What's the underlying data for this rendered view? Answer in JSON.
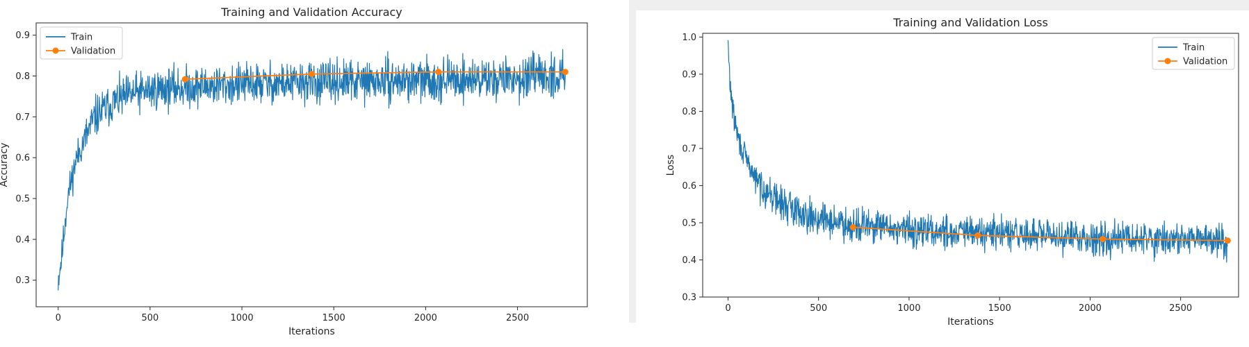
{
  "chart_data": [
    {
      "type": "line",
      "title": "Training and Validation Accuracy",
      "xlabel": "Iterations",
      "ylabel": "Accuracy",
      "xlim": [
        -120,
        2880
      ],
      "ylim": [
        0.235,
        0.93
      ],
      "xticks": [
        "0",
        "500",
        "1000",
        "1500",
        "2000",
        "2500"
      ],
      "yticks": [
        "0.3",
        "0.4",
        "0.5",
        "0.6",
        "0.7",
        "0.8",
        "0.9"
      ],
      "legend": {
        "placement": "upper-left",
        "entries": [
          "Train",
          "Validation"
        ]
      },
      "grid": false,
      "series": [
        {
          "name": "Train",
          "color": "#1f77b4",
          "marker": "none",
          "trend_x": [
            0,
            20,
            50,
            100,
            150,
            200,
            300,
            400,
            500,
            600,
            800,
            1000,
            1500,
            2000,
            2500,
            2760
          ],
          "trend_y": [
            0.3,
            0.36,
            0.5,
            0.6,
            0.65,
            0.7,
            0.735,
            0.755,
            0.765,
            0.77,
            0.775,
            0.78,
            0.785,
            0.79,
            0.795,
            0.8
          ],
          "noise_amplitude": 0.045,
          "x_max": 2760
        },
        {
          "name": "Validation",
          "color": "#ff7f0e",
          "marker": "circle",
          "x": [
            690,
            1380,
            2070,
            2760
          ],
          "y": [
            0.792,
            0.805,
            0.81,
            0.81
          ]
        }
      ]
    },
    {
      "type": "line",
      "title": "Training and Validation Loss",
      "xlabel": "Iterations",
      "ylabel": "Loss",
      "xlim": [
        -140,
        2820
      ],
      "ylim": [
        0.3,
        1.01
      ],
      "xticks": [
        "0",
        "500",
        "1000",
        "1500",
        "2000",
        "2500"
      ],
      "yticks": [
        "0.3",
        "0.4",
        "0.5",
        "0.6",
        "0.7",
        "0.8",
        "0.9",
        "1.0"
      ],
      "legend": {
        "placement": "upper-right",
        "entries": [
          "Train",
          "Validation"
        ]
      },
      "grid": false,
      "series": [
        {
          "name": "Train",
          "color": "#1f77b4",
          "marker": "none",
          "trend_x": [
            0,
            10,
            30,
            60,
            100,
            150,
            200,
            300,
            400,
            500,
            700,
            1000,
            1500,
            2000,
            2500,
            2760
          ],
          "trend_y": [
            0.98,
            0.88,
            0.79,
            0.72,
            0.67,
            0.62,
            0.59,
            0.55,
            0.53,
            0.51,
            0.495,
            0.48,
            0.47,
            0.46,
            0.455,
            0.455
          ],
          "noise_amplitude": 0.04,
          "x_max": 2760
        },
        {
          "name": "Validation",
          "color": "#ff7f0e",
          "marker": "circle",
          "x": [
            690,
            1380,
            2070,
            2760
          ],
          "y": [
            0.488,
            0.466,
            0.456,
            0.452
          ]
        }
      ]
    }
  ]
}
